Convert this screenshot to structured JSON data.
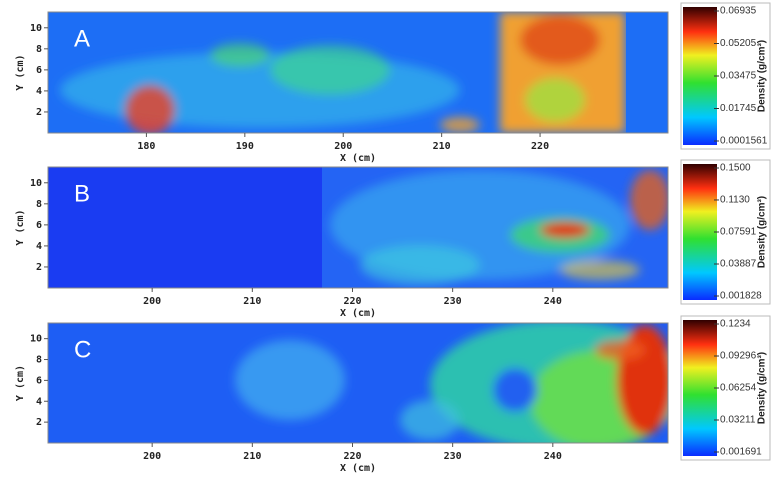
{
  "panels": [
    {
      "label": "A",
      "x_label": "X (cm)",
      "y_label": "Y (cm)",
      "xlim": [
        170,
        233
      ],
      "xticks": [
        180,
        190,
        200,
        210,
        220
      ],
      "ylim": [
        0,
        11.5
      ],
      "yticks": [
        2,
        4,
        6,
        8,
        10
      ],
      "colorbar": {
        "title": "Density (g/cm³)",
        "ticks": [
          0.0001561,
          0.01745,
          0.03475,
          0.05205,
          0.06935
        ]
      }
    },
    {
      "label": "B",
      "x_label": "X (cm)",
      "y_label": "Y (cm)",
      "xlim": [
        189.6,
        251.5
      ],
      "xticks": [
        200,
        210,
        220,
        230,
        240
      ],
      "ylim": [
        0,
        11.5
      ],
      "yticks": [
        2,
        4,
        6,
        8,
        10
      ],
      "colorbar": {
        "title": "Density (g/cm³)",
        "ticks": [
          0.001828,
          0.03887,
          0.07591,
          {
            "value": 0.113,
            "label": "0.1130"
          },
          {
            "value": 0.15,
            "label": "0.1500"
          }
        ]
      }
    },
    {
      "label": "C",
      "x_label": "X (cm)",
      "y_label": "Y (cm)",
      "xlim": [
        189.6,
        251.5
      ],
      "xticks": [
        200,
        210,
        220,
        230,
        240
      ],
      "ylim": [
        0,
        11.5
      ],
      "yticks": [
        2,
        4,
        6,
        8,
        10
      ],
      "colorbar": {
        "title": "Density (g/cm³)",
        "ticks": [
          0.001691,
          0.03211,
          0.06254,
          0.09296,
          0.1234
        ]
      }
    }
  ]
}
